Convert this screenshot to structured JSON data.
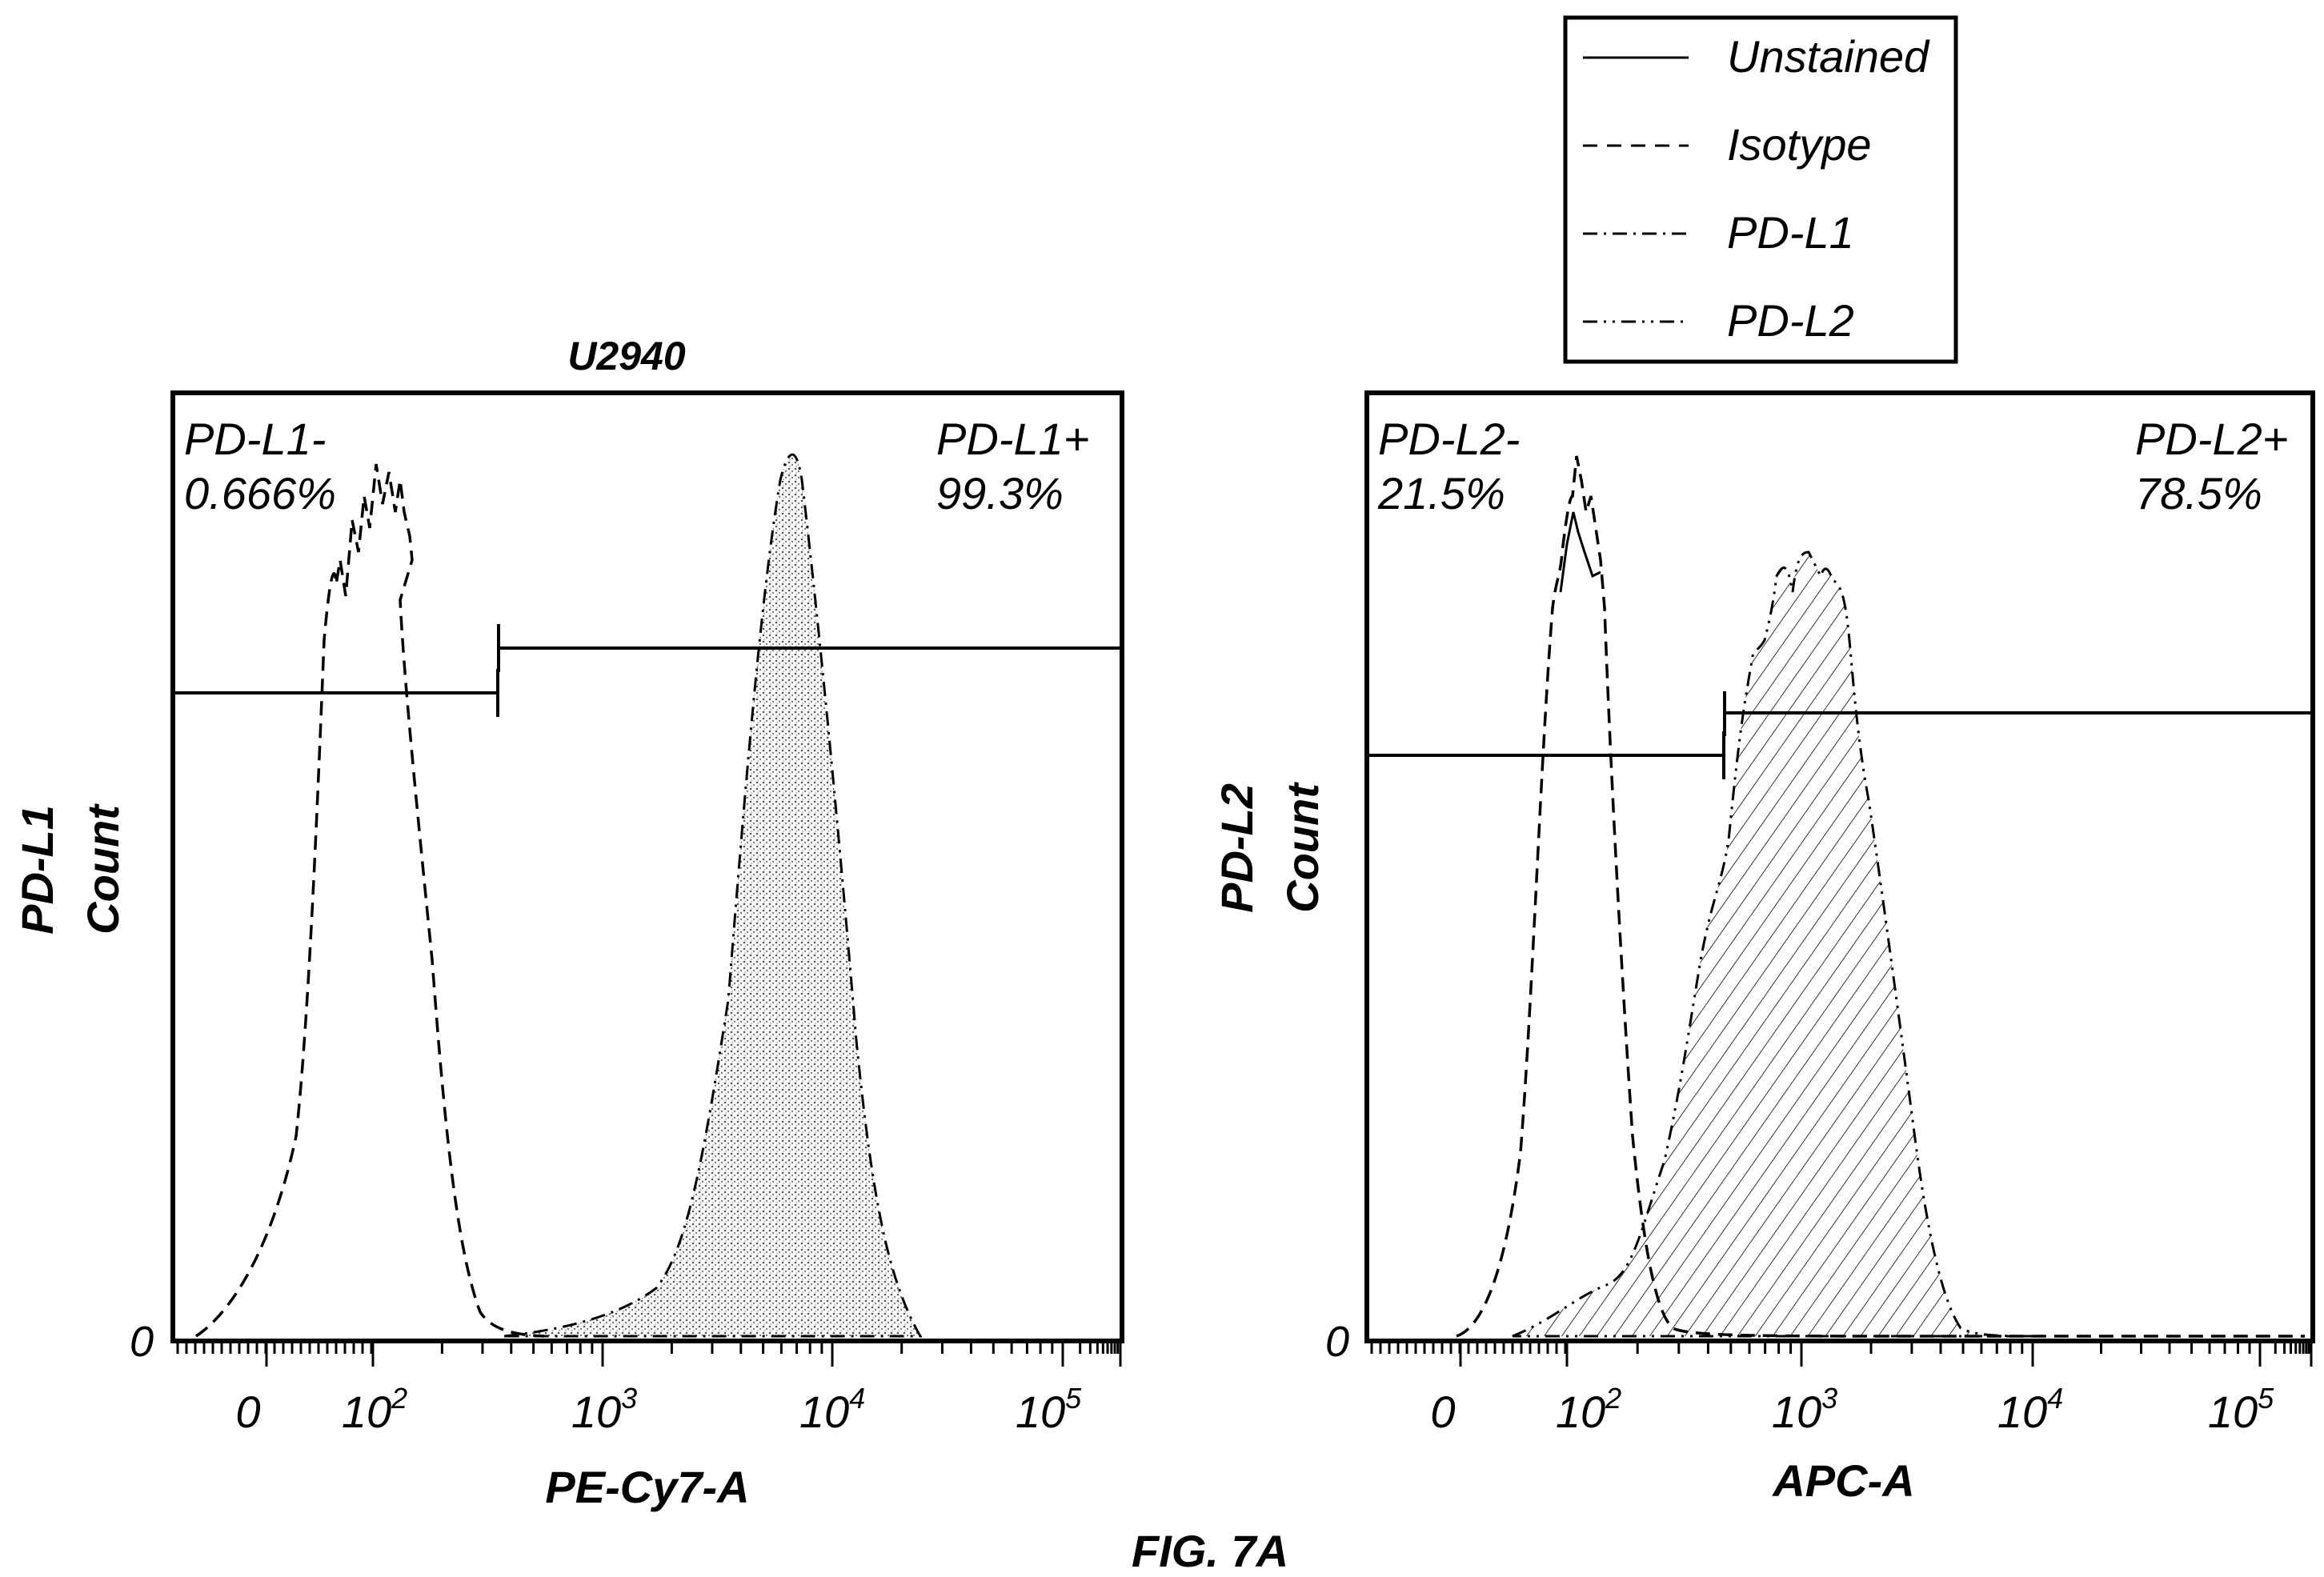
{
  "figure_caption": "FIG. 7A",
  "legend": {
    "items": [
      {
        "label": "Unstained",
        "style": "solid"
      },
      {
        "label": "Isotype",
        "style": "dashed"
      },
      {
        "label": "PD-L1",
        "style": "dashdot"
      },
      {
        "label": "PD-L2",
        "style": "dashdotdot"
      }
    ]
  },
  "chart_data": [
    {
      "type": "area",
      "title": "U2940",
      "xlabel": "PE-Cy7-A",
      "ylabel_line1": "PD-L1",
      "ylabel_line2": "Count",
      "x_scale": "biexponential",
      "y_tick_label": "0",
      "x_ticks": [
        {
          "label": "0",
          "base": "0",
          "exp": ""
        },
        {
          "label": "10^2",
          "base": "10",
          "exp": "2"
        },
        {
          "label": "10^3",
          "base": "10",
          "exp": "3"
        },
        {
          "label": "10^4",
          "base": "10",
          "exp": "4"
        },
        {
          "label": "10^5",
          "base": "10",
          "exp": "5"
        }
      ],
      "gates": [
        {
          "name": "PD-L1-",
          "percent": "0.666%",
          "label_line1": "PD-L1-",
          "label_line2": "0.666%"
        },
        {
          "name": "PD-L1+",
          "percent": "99.3%",
          "label_line1": "PD-L1+",
          "label_line2": "99.3%"
        }
      ],
      "series": [
        {
          "name": "Isotype",
          "style": "dashed",
          "fill": "none",
          "points": [
            [
              -30,
              0
            ],
            [
              -10,
              0.04
            ],
            [
              10,
              0.2
            ],
            [
              30,
              0.55
            ],
            [
              50,
              0.82
            ],
            [
              70,
              0.93
            ],
            [
              90,
              1.0
            ],
            [
              110,
              0.92
            ],
            [
              140,
              0.6
            ],
            [
              180,
              0.3
            ],
            [
              230,
              0.08
            ],
            [
              300,
              0.01
            ],
            [
              400,
              0
            ]
          ]
        },
        {
          "name": "PD-L1",
          "style": "dashdot",
          "fill": "stipple",
          "points": [
            [
              300,
              0
            ],
            [
              600,
              0.02
            ],
            [
              1200,
              0.06
            ],
            [
              2000,
              0.2
            ],
            [
              3000,
              0.48
            ],
            [
              4500,
              0.78
            ],
            [
              6500,
              1.0
            ],
            [
              9000,
              0.82
            ],
            [
              12000,
              0.45
            ],
            [
              16000,
              0.12
            ],
            [
              22000,
              0.01
            ],
            [
              30000,
              0
            ]
          ]
        }
      ]
    },
    {
      "type": "area",
      "title": "",
      "xlabel": "APC-A",
      "ylabel_line1": "PD-L2",
      "ylabel_line2": "Count",
      "x_scale": "biexponential",
      "y_tick_label": "0",
      "x_ticks": [
        {
          "label": "0",
          "base": "0",
          "exp": ""
        },
        {
          "label": "10^2",
          "base": "10",
          "exp": "2"
        },
        {
          "label": "10^3",
          "base": "10",
          "exp": "3"
        },
        {
          "label": "10^4",
          "base": "10",
          "exp": "4"
        },
        {
          "label": "10^5",
          "base": "10",
          "exp": "5"
        }
      ],
      "gates": [
        {
          "name": "PD-L2-",
          "percent": "21.5%",
          "label_line1": "PD-L2-",
          "label_line2": "21.5%"
        },
        {
          "name": "PD-L2+",
          "percent": "78.5%",
          "label_line1": "PD-L2+",
          "label_line2": "78.5%"
        }
      ],
      "series": [
        {
          "name": "Unstained",
          "style": "solid",
          "fill": "none",
          "points": [
            [
              100,
              0.8
            ],
            [
              110,
              0.92
            ],
            [
              120,
              0.87
            ],
            [
              130,
              0.85
            ]
          ]
        },
        {
          "name": "Isotype",
          "style": "dashed",
          "fill": "none",
          "points": [
            [
              -20,
              0
            ],
            [
              0,
              0.02
            ],
            [
              20,
              0.1
            ],
            [
              50,
              0.45
            ],
            [
              80,
              0.8
            ],
            [
              100,
              0.95
            ],
            [
              115,
              1.0
            ],
            [
              135,
              0.88
            ],
            [
              160,
              0.55
            ],
            [
              200,
              0.15
            ],
            [
              260,
              0.01
            ],
            [
              400,
              0
            ],
            [
              100000,
              0
            ]
          ]
        },
        {
          "name": "PD-L2",
          "style": "dashdotdot",
          "fill": "hatch",
          "points": [
            [
              50,
              0
            ],
            [
              100,
              0.05
            ],
            [
              180,
              0.2
            ],
            [
              300,
              0.55
            ],
            [
              450,
              0.78
            ],
            [
              650,
              0.92
            ],
            [
              850,
              0.9
            ],
            [
              1100,
              0.86
            ],
            [
              1500,
              0.62
            ],
            [
              2200,
              0.28
            ],
            [
              3200,
              0.03
            ],
            [
              4500,
              0
            ]
          ]
        }
      ]
    }
  ]
}
